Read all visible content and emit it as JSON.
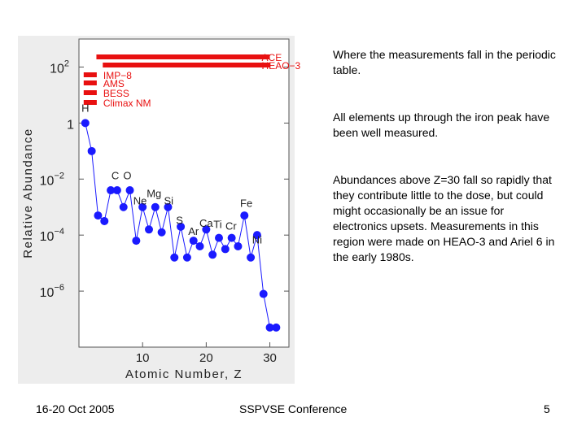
{
  "slide": {
    "paragraphs": [
      "Where the measurements fall in the periodic table.",
      "All elements up through the iron peak have been well measured.",
      "Abundances above Z=30 fall so rapidly that they contribute little to the dose, but could might occasionally be an issue for electronics upsets.  Measurements in this region were made on HEAO-3 and Ariel 6 in the early 1980s."
    ],
    "footer": {
      "date": "16-20 Oct 2005",
      "conference": "SSPVSE Conference",
      "page": "5"
    }
  },
  "chart_data": {
    "type": "scatter",
    "title": "",
    "xlabel": "Atomic Number, Z",
    "ylabel": "Relative Abundance",
    "xlim": [
      0,
      33
    ],
    "ylim": [
      -8,
      3
    ],
    "y_scale": "log10",
    "x_ticks": [
      10,
      20,
      30
    ],
    "y_ticks": [
      {
        "exp": 2,
        "label": "10",
        "sup": "2"
      },
      {
        "exp": 0,
        "label": "1",
        "sup": ""
      },
      {
        "exp": -2,
        "label": "10",
        "sup": "−2"
      },
      {
        "exp": -4,
        "label": "10",
        "sup": "−4"
      },
      {
        "exp": -6,
        "label": "10",
        "sup": "−6"
      }
    ],
    "series": [
      {
        "color": "#1a1aff",
        "points": [
          [
            1,
            0
          ],
          [
            2,
            -1
          ],
          [
            3,
            -3.3
          ],
          [
            4,
            -3.5
          ],
          [
            5,
            -2.4
          ],
          [
            6,
            -2.4
          ],
          [
            7,
            -3.0
          ],
          [
            8,
            -2.4
          ],
          [
            9,
            -4.2
          ],
          [
            10,
            -3.0
          ],
          [
            11,
            -3.8
          ],
          [
            12,
            -3.0
          ],
          [
            13,
            -3.9
          ],
          [
            14,
            -3.0
          ],
          [
            15,
            -4.8
          ],
          [
            16,
            -3.7
          ],
          [
            17,
            -4.8
          ],
          [
            18,
            -4.2
          ],
          [
            19,
            -4.4
          ],
          [
            20,
            -3.8
          ],
          [
            21,
            -4.7
          ],
          [
            22,
            -4.1
          ],
          [
            23,
            -4.5
          ],
          [
            24,
            -4.1
          ],
          [
            25,
            -4.4
          ],
          [
            26,
            -3.3
          ],
          [
            27,
            -4.8
          ],
          [
            28,
            -4.0
          ],
          [
            29,
            -6.1
          ],
          [
            30,
            -7.3
          ],
          [
            31,
            -7.3
          ]
        ]
      }
    ],
    "element_labels": [
      {
        "text": "H",
        "z": 1,
        "exp": 0.4
      },
      {
        "text": "C",
        "z": 5.7,
        "exp": -2.0
      },
      {
        "text": "O",
        "z": 7.6,
        "exp": -2.0
      },
      {
        "text": "Ne",
        "z": 9.6,
        "exp": -2.9
      },
      {
        "text": "Mg",
        "z": 11.8,
        "exp": -2.65
      },
      {
        "text": "Si",
        "z": 14.1,
        "exp": -2.9
      },
      {
        "text": "S",
        "z": 15.8,
        "exp": -3.6
      },
      {
        "text": "Ar",
        "z": 18.0,
        "exp": -4.0
      },
      {
        "text": "Ca",
        "z": 20.0,
        "exp": -3.7
      },
      {
        "text": "Ti",
        "z": 21.8,
        "exp": -3.75
      },
      {
        "text": "Cr",
        "z": 23.9,
        "exp": -3.8
      },
      {
        "text": "Fe",
        "z": 26.3,
        "exp": -3.0
      },
      {
        "text": "Ni",
        "z": 28.0,
        "exp": -4.3
      }
    ],
    "instrument_bars": [
      {
        "name": "ACE",
        "z_start": 3,
        "z_end": 30,
        "color": "#e81010"
      },
      {
        "name": "HEAO−3",
        "z_start": 4,
        "z_end": 30,
        "color": "#e81010"
      },
      {
        "name": "IMP−8",
        "z_start": 1,
        "z_end": 2.8,
        "color": "#e81010"
      },
      {
        "name": "AMS",
        "z_start": 1,
        "z_end": 2.8,
        "color": "#e81010"
      },
      {
        "name": "BESS",
        "z_start": 1,
        "z_end": 2.8,
        "color": "#e81010"
      },
      {
        "name": "Climax NM",
        "z_start": 1,
        "z_end": 2.8,
        "color": "#e81010"
      }
    ]
  }
}
